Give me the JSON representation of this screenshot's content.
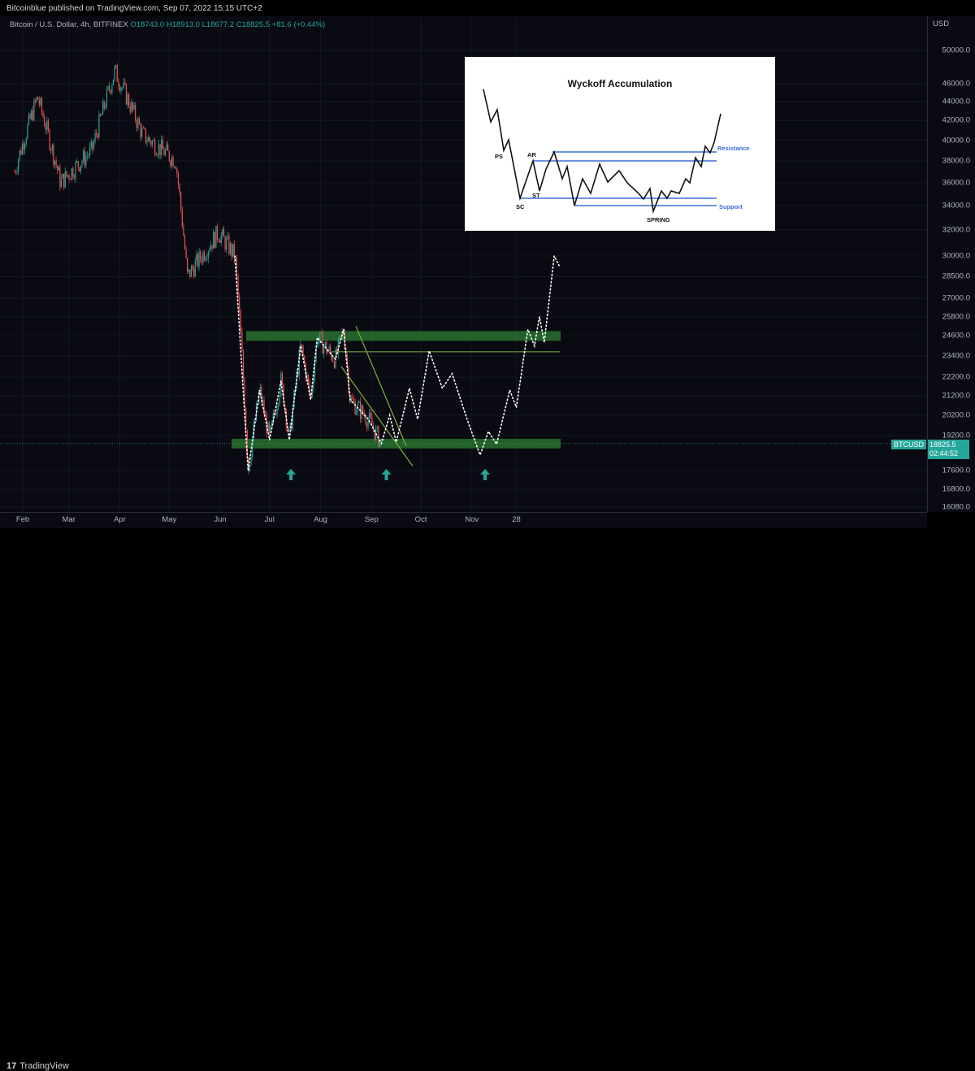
{
  "header": {
    "published": "Bitcoinblue published on TradingView.com, Sep 07, 2022 15:15 UTC+2"
  },
  "legend": {
    "symbol": "Bitcoin / U.S. Dollar, 4h, BITFINEX",
    "ohlc": "O18743.0 H18913.0 L18677.2 C18825.5 +81.6 (+0.44%)"
  },
  "price_axis": {
    "currency": "USD",
    "ticks": [
      "50000.0",
      "46000.0",
      "44000.0",
      "42000.0",
      "40000.0",
      "38000.0",
      "36000.0",
      "34000.0",
      "32000.0",
      "30000.0",
      "28500.0",
      "27000.0",
      "25800.0",
      "24600.0",
      "23400.0",
      "22200.0",
      "21200.0",
      "20200.0",
      "19200.0",
      "17600.0",
      "16800.0",
      "16080.0"
    ]
  },
  "time_axis": {
    "ticks": [
      "Feb",
      "Mar",
      "Apr",
      "May",
      "Jun",
      "Jul",
      "Aug",
      "Sep",
      "Oct",
      "Nov",
      "28"
    ]
  },
  "current": {
    "symbol_badge": "BTCUSD",
    "price": "18825.5",
    "countdown": "02:44:52"
  },
  "footer": {
    "brand": "TradingView"
  },
  "inset": {
    "title": "Wyckoff Accumulation",
    "labels": {
      "ps": "PS",
      "ar": "AR",
      "st": "ST",
      "sc": "SC",
      "spring": "SPRING",
      "resistance": "Resistance",
      "support": "Support"
    }
  },
  "colors": {
    "up": "#26a69a",
    "down": "#ef5350",
    "zone": "#2e7d32",
    "trendline": "#7cb342",
    "inset_line": "#3b6fd4"
  },
  "chart_data": {
    "type": "candlestick",
    "symbol": "BTCUSD",
    "timeframe": "4h",
    "exchange": "BITFINEX",
    "last": {
      "open": 18743.0,
      "high": 18913.0,
      "low": 18677.2,
      "close": 18825.5,
      "change": 81.6,
      "change_pct": 0.44
    },
    "price_path_approx": [
      [
        "2022-01-27",
        37000
      ],
      [
        "2022-02-10",
        44500
      ],
      [
        "2022-02-24",
        36000
      ],
      [
        "2022-03-15",
        39000
      ],
      [
        "2022-03-29",
        47500
      ],
      [
        "2022-04-15",
        40500
      ],
      [
        "2022-05-05",
        38000
      ],
      [
        "2022-05-12",
        28500
      ],
      [
        "2022-05-31",
        31800
      ],
      [
        "2022-06-10",
        30000
      ],
      [
        "2022-06-18",
        17600
      ],
      [
        "2022-06-25",
        21500
      ],
      [
        "2022-07-01",
        19000
      ],
      [
        "2022-07-08",
        22000
      ],
      [
        "2022-07-13",
        19000
      ],
      [
        "2022-07-20",
        24000
      ],
      [
        "2022-07-26",
        21000
      ],
      [
        "2022-07-30",
        24500
      ],
      [
        "2022-08-10",
        23200
      ],
      [
        "2022-08-15",
        25000
      ],
      [
        "2022-08-19",
        21000
      ],
      [
        "2022-08-30",
        20000
      ],
      [
        "2022-09-07",
        18825.5
      ]
    ],
    "projection": [
      [
        "2022-09-07",
        18800
      ],
      [
        "2022-09-12",
        20200
      ],
      [
        "2022-09-16",
        18900
      ],
      [
        "2022-09-24",
        21600
      ],
      [
        "2022-09-29",
        20000
      ],
      [
        "2022-10-06",
        23700
      ],
      [
        "2022-10-14",
        21600
      ],
      [
        "2022-10-20",
        22400
      ],
      [
        "2022-10-29",
        20000
      ],
      [
        "2022-11-06",
        18300
      ],
      [
        "2022-11-11",
        19400
      ],
      [
        "2022-11-16",
        18800
      ],
      [
        "2022-11-24",
        21500
      ],
      [
        "2022-11-28",
        20600
      ],
      [
        "2022-12-05",
        25000
      ],
      [
        "2022-12-09",
        24000
      ],
      [
        "2022-12-12",
        25800
      ],
      [
        "2022-12-15",
        24200
      ],
      [
        "2022-12-21",
        30000
      ],
      [
        "2022-12-24",
        29300
      ]
    ],
    "zones": [
      {
        "name": "resistance",
        "from": 24300,
        "to": 24900
      },
      {
        "name": "support",
        "from": 18600,
        "to": 19050
      }
    ],
    "lines": [
      {
        "name": "range-top",
        "value": 23650
      }
    ],
    "arrows_at": [
      "2022-07-14",
      "2022-09-10",
      "2022-11-09"
    ]
  }
}
